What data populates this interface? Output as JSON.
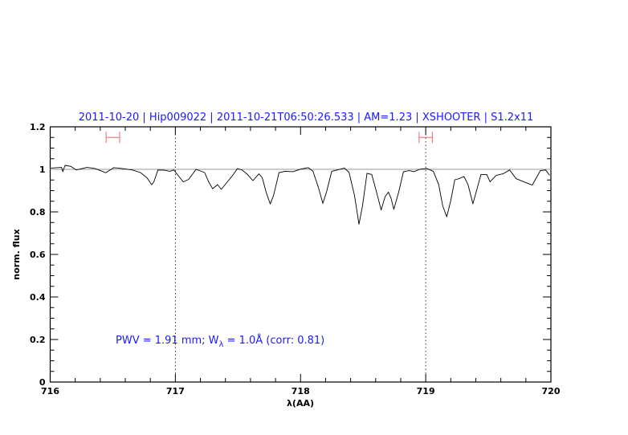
{
  "chart_data": {
    "type": "line",
    "title": "2011-10-20 | Hip009022 | 2011-10-21T06:50:26.533 | AM=1.23 | XSHOOTER | S1.2x11",
    "xlabel": "λ(AA)",
    "ylabel": "norm. flux",
    "xlim": [
      716,
      720
    ],
    "ylim": [
      0,
      1.2
    ],
    "xticks": [
      "716",
      "717",
      "718",
      "719",
      "720"
    ],
    "yticks": [
      "0",
      "0.2",
      "0.4",
      "0.6",
      "0.8",
      "1",
      "1.2"
    ],
    "grid": false,
    "annotation": {
      "prefix": "PWV = 1.91 mm; W",
      "sub": "λ",
      "suffix": " = 1.0Å (corr: 0.81)"
    },
    "reference_line": {
      "y": 1.0,
      "color": "#e06060"
    },
    "dotted_lines_x": [
      717,
      719
    ],
    "intervals": [
      {
        "x0": 716.447,
        "x1": 716.555,
        "y": 1.15
      },
      {
        "x0": 718.947,
        "x1": 719.053,
        "y": 1.15
      }
    ],
    "colors": {
      "title": "#1a1aff",
      "spectrum": "#000000",
      "interval": "#f08080"
    },
    "series": [
      {
        "x": [
          716.005,
          716.091,
          716.101,
          716.119,
          716.165,
          716.208,
          716.294,
          716.358,
          716.444,
          716.508,
          716.572,
          716.657,
          716.721,
          716.774,
          716.811,
          716.828,
          716.86,
          716.913,
          716.956,
          716.988,
          717.021,
          717.063,
          717.106,
          717.165,
          717.234,
          717.266,
          717.298,
          717.337,
          717.367,
          717.415,
          717.458,
          717.495,
          717.533,
          717.576,
          717.619,
          717.668,
          717.694,
          717.726,
          717.758,
          717.785,
          717.828,
          717.875,
          717.939,
          718.003,
          718.061,
          718.099,
          718.142,
          718.178,
          718.206,
          718.249,
          718.292,
          718.351,
          718.388,
          718.431,
          718.467,
          718.495,
          718.531,
          718.569,
          718.608,
          718.644,
          718.676,
          718.702,
          718.723,
          718.745,
          718.783,
          718.822,
          718.869,
          718.907,
          718.95,
          719.008,
          719.061,
          719.104,
          719.136,
          719.168,
          719.2,
          719.232,
          719.264,
          719.306,
          719.338,
          719.377,
          719.407,
          719.441,
          719.488,
          719.514,
          719.563,
          719.617,
          719.67,
          719.723,
          719.777,
          719.851,
          719.915,
          719.958,
          719.99
        ],
        "y": [
          1.006,
          1.009,
          0.989,
          1.019,
          1.014,
          0.997,
          1.009,
          1.004,
          0.984,
          1.008,
          1.004,
          0.997,
          0.985,
          0.96,
          0.928,
          0.941,
          0.997,
          0.996,
          0.991,
          0.997,
          0.972,
          0.941,
          0.953,
          1.0,
          0.985,
          0.941,
          0.909,
          0.928,
          0.906,
          0.941,
          0.972,
          1.003,
          0.997,
          0.976,
          0.947,
          0.979,
          0.96,
          0.891,
          0.837,
          0.878,
          0.984,
          0.991,
          0.989,
          1.001,
          1.008,
          0.991,
          0.916,
          0.84,
          0.891,
          0.991,
          0.997,
          1.006,
          0.985,
          0.878,
          0.742,
          0.828,
          0.981,
          0.976,
          0.891,
          0.809,
          0.872,
          0.893,
          0.865,
          0.812,
          0.891,
          0.989,
          0.994,
          0.989,
          1.0,
          1.004,
          0.991,
          0.928,
          0.828,
          0.777,
          0.853,
          0.951,
          0.956,
          0.966,
          0.928,
          0.838,
          0.903,
          0.976,
          0.976,
          0.941,
          0.972,
          0.979,
          0.997,
          0.956,
          0.943,
          0.926,
          0.994,
          0.997,
          0.972
        ]
      }
    ]
  }
}
